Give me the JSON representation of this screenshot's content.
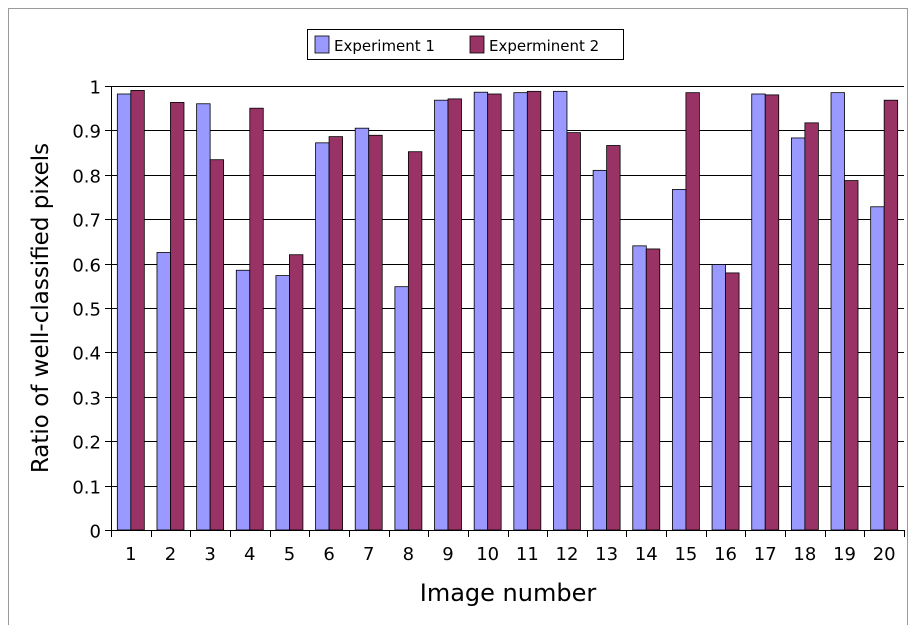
{
  "chart_data": {
    "type": "bar",
    "title": "",
    "xlabel": "Image number",
    "ylabel": "Ratio of well-classified pixels",
    "ylim": [
      0,
      1
    ],
    "yticks": [
      0,
      0.1,
      0.2,
      0.3,
      0.4,
      0.5,
      0.6,
      0.7,
      0.8,
      0.9,
      1
    ],
    "ytick_labels": [
      "0",
      "0.1",
      "0.2",
      "0.3",
      "0.4",
      "0.5",
      "0.6",
      "0.7",
      "0.8",
      "0.9",
      "1"
    ],
    "grid": true,
    "legend_position": "top-center",
    "categories": [
      "1",
      "2",
      "3",
      "4",
      "5",
      "6",
      "7",
      "8",
      "9",
      "10",
      "11",
      "12",
      "13",
      "14",
      "15",
      "16",
      "17",
      "18",
      "19",
      "20"
    ],
    "series": [
      {
        "name": "Experiment 1",
        "color": "#9999ff",
        "values": [
          0.982,
          0.625,
          0.96,
          0.585,
          0.573,
          0.872,
          0.905,
          0.548,
          0.968,
          0.986,
          0.985,
          0.988,
          0.81,
          0.64,
          0.767,
          0.598,
          0.982,
          0.883,
          0.985,
          0.728
        ]
      },
      {
        "name": "Experminent 2",
        "color": "#993366",
        "values": [
          0.99,
          0.963,
          0.834,
          0.95,
          0.62,
          0.886,
          0.889,
          0.852,
          0.971,
          0.982,
          0.988,
          0.895,
          0.866,
          0.633,
          0.985,
          0.579,
          0.98,
          0.917,
          0.787,
          0.968
        ]
      }
    ]
  }
}
